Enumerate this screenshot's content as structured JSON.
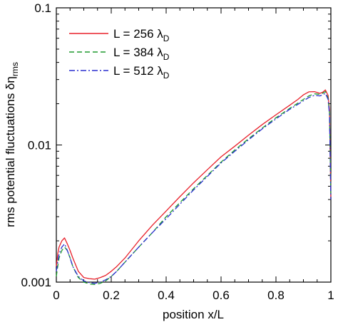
{
  "chart_data": {
    "type": "line",
    "title": "",
    "xlabel": "position x/L",
    "ylabel": {
      "main": "rms potential fluctuations  δη",
      "subscript": "rms"
    },
    "xlim": [
      0,
      1
    ],
    "ylim": [
      0.001,
      0.1
    ],
    "yscale": "log",
    "grid": false,
    "legend_position": "top-left",
    "x_ticks": [
      {
        "value": 0,
        "label": "0"
      },
      {
        "value": 0.2,
        "label": "0.2"
      },
      {
        "value": 0.4,
        "label": "0.4"
      },
      {
        "value": 0.6,
        "label": "0.6"
      },
      {
        "value": 0.8,
        "label": "0.8"
      },
      {
        "value": 1,
        "label": "1"
      }
    ],
    "y_ticks": [
      {
        "value": 0.001,
        "label": "0.001"
      },
      {
        "value": 0.01,
        "label": "0.01"
      },
      {
        "value": 0.1,
        "label": "0.1"
      }
    ],
    "series": [
      {
        "name": "L = 256 λD",
        "legend": {
          "main": "L = 256 λ",
          "sub": "D"
        },
        "color": "#e8202a",
        "dash": "solid",
        "x": [
          0,
          0.005,
          0.01,
          0.02,
          0.03,
          0.04,
          0.05,
          0.06,
          0.08,
          0.1,
          0.12,
          0.14,
          0.16,
          0.18,
          0.2,
          0.22,
          0.25,
          0.3,
          0.35,
          0.4,
          0.45,
          0.5,
          0.55,
          0.6,
          0.65,
          0.7,
          0.75,
          0.8,
          0.85,
          0.88,
          0.9,
          0.92,
          0.94,
          0.96,
          0.97,
          0.98,
          0.99,
          0.995,
          1.0
        ],
        "y": [
          0.0013,
          0.0016,
          0.0018,
          0.002,
          0.0021,
          0.0019,
          0.0017,
          0.0015,
          0.0012,
          0.00108,
          0.00106,
          0.00105,
          0.00108,
          0.00112,
          0.0012,
          0.0013,
          0.0015,
          0.002,
          0.0026,
          0.0033,
          0.0042,
          0.0053,
          0.0066,
          0.0082,
          0.0098,
          0.0118,
          0.0141,
          0.0166,
          0.0195,
          0.0215,
          0.0232,
          0.0244,
          0.0245,
          0.0238,
          0.0242,
          0.0252,
          0.023,
          0.018,
          0.004
        ]
      },
      {
        "name": "L = 384 λD",
        "legend": {
          "main": "L = 384 λ",
          "sub": "D"
        },
        "color": "#1e9a2e",
        "dash": "dashed",
        "x": [
          0,
          0.005,
          0.01,
          0.02,
          0.03,
          0.04,
          0.05,
          0.06,
          0.08,
          0.1,
          0.12,
          0.14,
          0.16,
          0.18,
          0.2,
          0.22,
          0.25,
          0.3,
          0.35,
          0.4,
          0.45,
          0.5,
          0.55,
          0.6,
          0.65,
          0.7,
          0.75,
          0.8,
          0.85,
          0.88,
          0.9,
          0.92,
          0.94,
          0.96,
          0.97,
          0.98,
          0.99,
          0.995,
          1.0
        ],
        "y": [
          0.0011,
          0.0013,
          0.0015,
          0.0017,
          0.0018,
          0.0017,
          0.0015,
          0.0013,
          0.00108,
          0.001,
          0.00097,
          0.00096,
          0.00098,
          0.00102,
          0.0011,
          0.0012,
          0.0014,
          0.0018,
          0.0023,
          0.003,
          0.0038,
          0.0048,
          0.006,
          0.0075,
          0.0092,
          0.0111,
          0.0133,
          0.0158,
          0.0185,
          0.0202,
          0.0215,
          0.0228,
          0.0236,
          0.0234,
          0.0238,
          0.0245,
          0.022,
          0.017,
          0.004
        ]
      },
      {
        "name": "L = 512 λD",
        "legend": {
          "main": "L = 512 λ",
          "sub": "D"
        },
        "color": "#2a2fcf",
        "dash": "dashdot",
        "x": [
          0,
          0.005,
          0.01,
          0.02,
          0.03,
          0.04,
          0.05,
          0.06,
          0.08,
          0.1,
          0.12,
          0.14,
          0.16,
          0.18,
          0.2,
          0.22,
          0.25,
          0.3,
          0.35,
          0.4,
          0.45,
          0.5,
          0.55,
          0.6,
          0.65,
          0.7,
          0.75,
          0.8,
          0.85,
          0.88,
          0.9,
          0.92,
          0.94,
          0.96,
          0.97,
          0.98,
          0.99,
          0.995,
          1.0
        ],
        "y": [
          0.0012,
          0.0014,
          0.0016,
          0.0018,
          0.0019,
          0.0017,
          0.0015,
          0.0013,
          0.0011,
          0.00102,
          0.00099,
          0.00098,
          0.001,
          0.00104,
          0.0011,
          0.0012,
          0.0014,
          0.0018,
          0.0023,
          0.0029,
          0.0037,
          0.0047,
          0.0059,
          0.0074,
          0.009,
          0.0109,
          0.0131,
          0.0155,
          0.0182,
          0.0198,
          0.021,
          0.0222,
          0.023,
          0.0228,
          0.0232,
          0.0238,
          0.0215,
          0.0165,
          0.004
        ]
      }
    ]
  }
}
